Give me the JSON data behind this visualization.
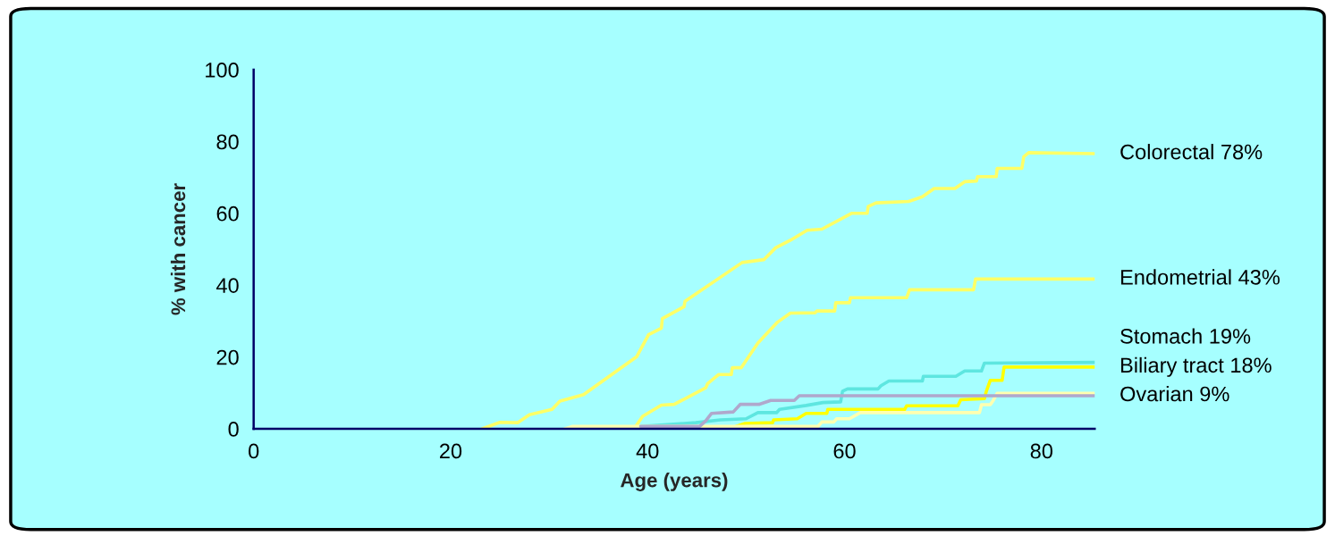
{
  "chart_data": {
    "type": "line",
    "xlabel": "Age (years)",
    "ylabel": "% with cancer",
    "xlim": [
      0,
      85.4
    ],
    "xticks": [
      0,
      20,
      40,
      60,
      80
    ],
    "ylim": [
      0,
      100
    ],
    "yticks": [
      0,
      20,
      40,
      60,
      80,
      100
    ],
    "grid": false,
    "legend": false,
    "marker": "none",
    "line_style": "solid",
    "series": [
      {
        "name": "Colorectal 78%",
        "color": "#ffff66",
        "x": [
          23.2,
          25.0,
          26.8,
          28.0,
          30.3,
          31.1,
          33.5,
          38.9,
          40.1,
          41.4,
          41.5,
          43.7,
          43.8,
          49.6,
          51.8,
          53.0,
          54.5,
          56.2,
          57.7,
          60.7,
          62.3,
          62.4,
          63.2,
          66.5,
          67.9,
          69.1,
          71.2,
          72.2,
          73.4,
          73.5,
          75.4,
          75.5,
          78.0,
          78.2,
          78.7,
          85.4
        ],
        "values": [
          0,
          1.8,
          1.7,
          3.9,
          5.4,
          7.7,
          9.5,
          20.1,
          26.2,
          28.0,
          30.7,
          34.0,
          35.5,
          46.3,
          47.1,
          50.4,
          52.5,
          55.3,
          55.6,
          60.0,
          60.0,
          61.9,
          62.9,
          63.3,
          64.6,
          66.9,
          66.9,
          68.8,
          69.0,
          70.2,
          70.2,
          72.5,
          72.5,
          75.8,
          76.9,
          76.6
        ]
      },
      {
        "name": "Endometrial 43%",
        "color": "#ffff66",
        "x": [
          38.8,
          39.5,
          41.4,
          42.7,
          45.9,
          46.1,
          47.2,
          48.5,
          48.6,
          49.5,
          51.2,
          53.2,
          54.5,
          57.0,
          57.2,
          59.0,
          59.1,
          60.5,
          60.6,
          66.3,
          66.6,
          73.1,
          73.3,
          85.4
        ],
        "values": [
          0.7,
          3.5,
          6.6,
          6.8,
          11.4,
          12.6,
          15.1,
          15.1,
          17.0,
          17.0,
          23.9,
          29.7,
          32.2,
          32.3,
          32.8,
          32.8,
          35.1,
          35.1,
          36.5,
          36.5,
          38.7,
          38.7,
          41.7,
          41.7
        ]
      },
      {
        "name": "Stomach 19%",
        "color": "#5ee6e0",
        "x": [
          39.3,
          44.9,
          47.4,
          50.0,
          51.2,
          53.1,
          53.4,
          56.1,
          57.8,
          59.6,
          59.8,
          60.3,
          63.4,
          63.7,
          64.5,
          67.9,
          68.0,
          71.3,
          72.2,
          73.9,
          74.2,
          85.4
        ],
        "values": [
          0.7,
          1.7,
          2.5,
          2.8,
          4.5,
          4.5,
          5.4,
          6.5,
          7.3,
          7.5,
          10.5,
          11.1,
          11.1,
          12.0,
          13.3,
          13.3,
          14.6,
          14.6,
          16.1,
          16.1,
          18.3,
          18.5
        ]
      },
      {
        "name": "Biliary tract 18%",
        "color": "#ffff00",
        "x": [
          49.0,
          49.9,
          52.7,
          52.8,
          55.2,
          56.1,
          58.2,
          58.3,
          66.1,
          66.3,
          71.5,
          71.8,
          74.2,
          74.4,
          74.8,
          76.0,
          76.2,
          85.4
        ],
        "values": [
          0.7,
          1.5,
          1.7,
          2.5,
          2.8,
          4.3,
          4.3,
          5.4,
          5.4,
          6.4,
          6.4,
          8.1,
          8.4,
          10.5,
          13.5,
          13.5,
          17.2,
          17.2
        ]
      },
      {
        "color": "#ffffb0",
        "x": [
          31.6,
          32.4,
          57.3,
          57.7,
          58.9,
          59.2,
          60.5,
          61.6,
          73.7,
          73.9,
          74.8,
          75.1,
          75.5,
          85.4
        ],
        "values": [
          0,
          0.7,
          0.7,
          1.9,
          1.9,
          2.8,
          2.8,
          4.5,
          4.5,
          6.7,
          6.7,
          7.9,
          9.9,
          9.9
        ]
      },
      {
        "name": "Ovarian 9%",
        "color": "#b0a8cc",
        "x": [
          39.3,
          45.3,
          45.9,
          46.5,
          48.7,
          49.4,
          51.3,
          52.5,
          54.9,
          55.4,
          85.4
        ],
        "values": [
          0.7,
          0.7,
          2.2,
          4.3,
          4.7,
          6.8,
          6.8,
          7.9,
          7.9,
          9.2,
          9.2
        ]
      }
    ]
  }
}
